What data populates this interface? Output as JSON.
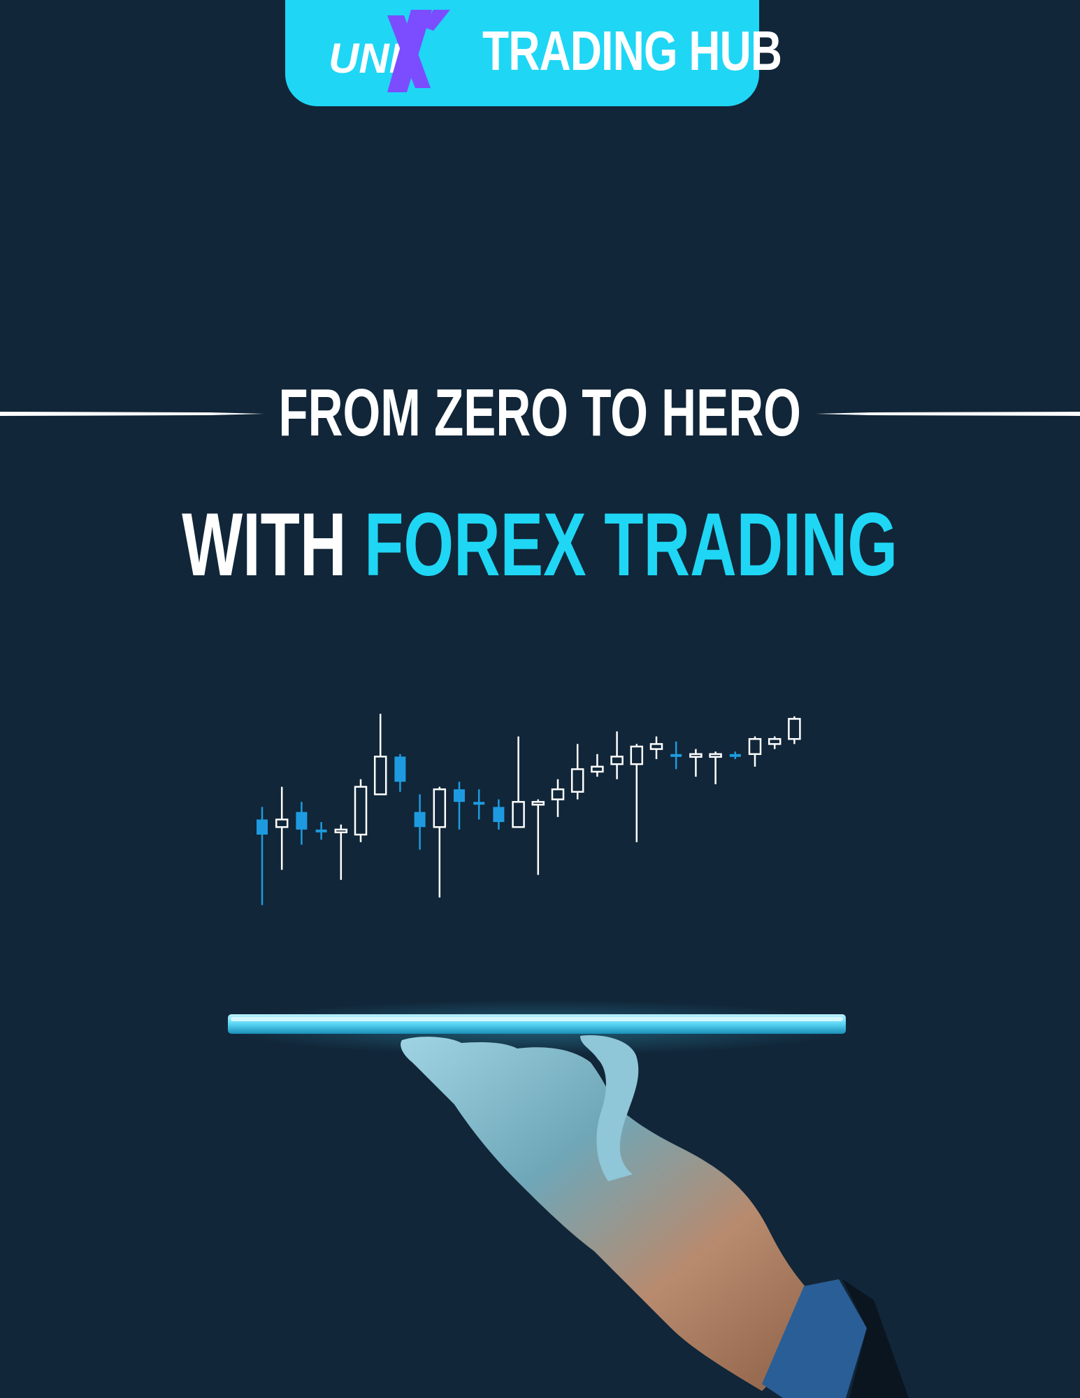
{
  "brand": {
    "logo_prefix": "UNI",
    "logo_mark": "X",
    "title": "TRADING HUB"
  },
  "headline": {
    "line1": "FROM ZERO TO HERO",
    "line2_plain": "WITH",
    "line2_accent": "FOREX TRADING"
  },
  "colors": {
    "background": "#112638",
    "accent": "#1fd6f5",
    "logo_mark": "#7b4dff",
    "candle_blue": "#1e9be0",
    "candle_outline": "#ffffff"
  },
  "chart_data": {
    "type": "candlestick",
    "title": "",
    "xlabel": "",
    "ylabel": "",
    "ylim": [
      0,
      100
    ],
    "candles": [
      {
        "o": 41,
        "c": 35,
        "h": 46,
        "l": 7,
        "dir": "down"
      },
      {
        "o": 38,
        "c": 41,
        "h": 54,
        "l": 21,
        "dir": "up"
      },
      {
        "o": 44,
        "c": 37,
        "h": 48,
        "l": 31,
        "dir": "down"
      },
      {
        "o": 37,
        "c": 36,
        "h": 40,
        "l": 33,
        "dir": "down"
      },
      {
        "o": 36,
        "c": 37,
        "h": 39,
        "l": 17,
        "dir": "up"
      },
      {
        "o": 35,
        "c": 54,
        "h": 57,
        "l": 32,
        "dir": "up"
      },
      {
        "o": 51,
        "c": 66,
        "h": 83,
        "l": 51,
        "dir": "up"
      },
      {
        "o": 66,
        "c": 56,
        "h": 67,
        "l": 52,
        "dir": "down"
      },
      {
        "o": 44,
        "c": 38,
        "h": 51,
        "l": 29,
        "dir": "down"
      },
      {
        "o": 38,
        "c": 53,
        "h": 54,
        "l": 10,
        "dir": "up"
      },
      {
        "o": 53,
        "c": 48,
        "h": 56,
        "l": 37,
        "dir": "down"
      },
      {
        "o": 48,
        "c": 47,
        "h": 53,
        "l": 41,
        "dir": "down"
      },
      {
        "o": 46,
        "c": 40,
        "h": 49,
        "l": 37,
        "dir": "down"
      },
      {
        "o": 38,
        "c": 48,
        "h": 74,
        "l": 38,
        "dir": "up"
      },
      {
        "o": 47,
        "c": 48,
        "h": 49,
        "l": 19,
        "dir": "up"
      },
      {
        "o": 49,
        "c": 53,
        "h": 57,
        "l": 42,
        "dir": "up"
      },
      {
        "o": 52,
        "c": 61,
        "h": 71,
        "l": 49,
        "dir": "up"
      },
      {
        "o": 60,
        "c": 62,
        "h": 67,
        "l": 58,
        "dir": "up"
      },
      {
        "o": 63,
        "c": 66,
        "h": 76,
        "l": 57,
        "dir": "up"
      },
      {
        "o": 63,
        "c": 70,
        "h": 71,
        "l": 32,
        "dir": "up"
      },
      {
        "o": 69,
        "c": 71,
        "h": 74,
        "l": 65,
        "dir": "up"
      },
      {
        "o": 67,
        "c": 67,
        "h": 72,
        "l": 61,
        "dir": "down"
      },
      {
        "o": 66,
        "c": 67,
        "h": 69,
        "l": 58,
        "dir": "up"
      },
      {
        "o": 66,
        "c": 67,
        "h": 68,
        "l": 55,
        "dir": "up"
      },
      {
        "o": 67,
        "c": 67,
        "h": 68,
        "l": 65,
        "dir": "down"
      },
      {
        "o": 67,
        "c": 73,
        "h": 74,
        "l": 62,
        "dir": "up"
      },
      {
        "o": 71,
        "c": 73,
        "h": 74,
        "l": 69,
        "dir": "up"
      },
      {
        "o": 73,
        "c": 81,
        "h": 82,
        "l": 71,
        "dir": "up"
      }
    ]
  }
}
